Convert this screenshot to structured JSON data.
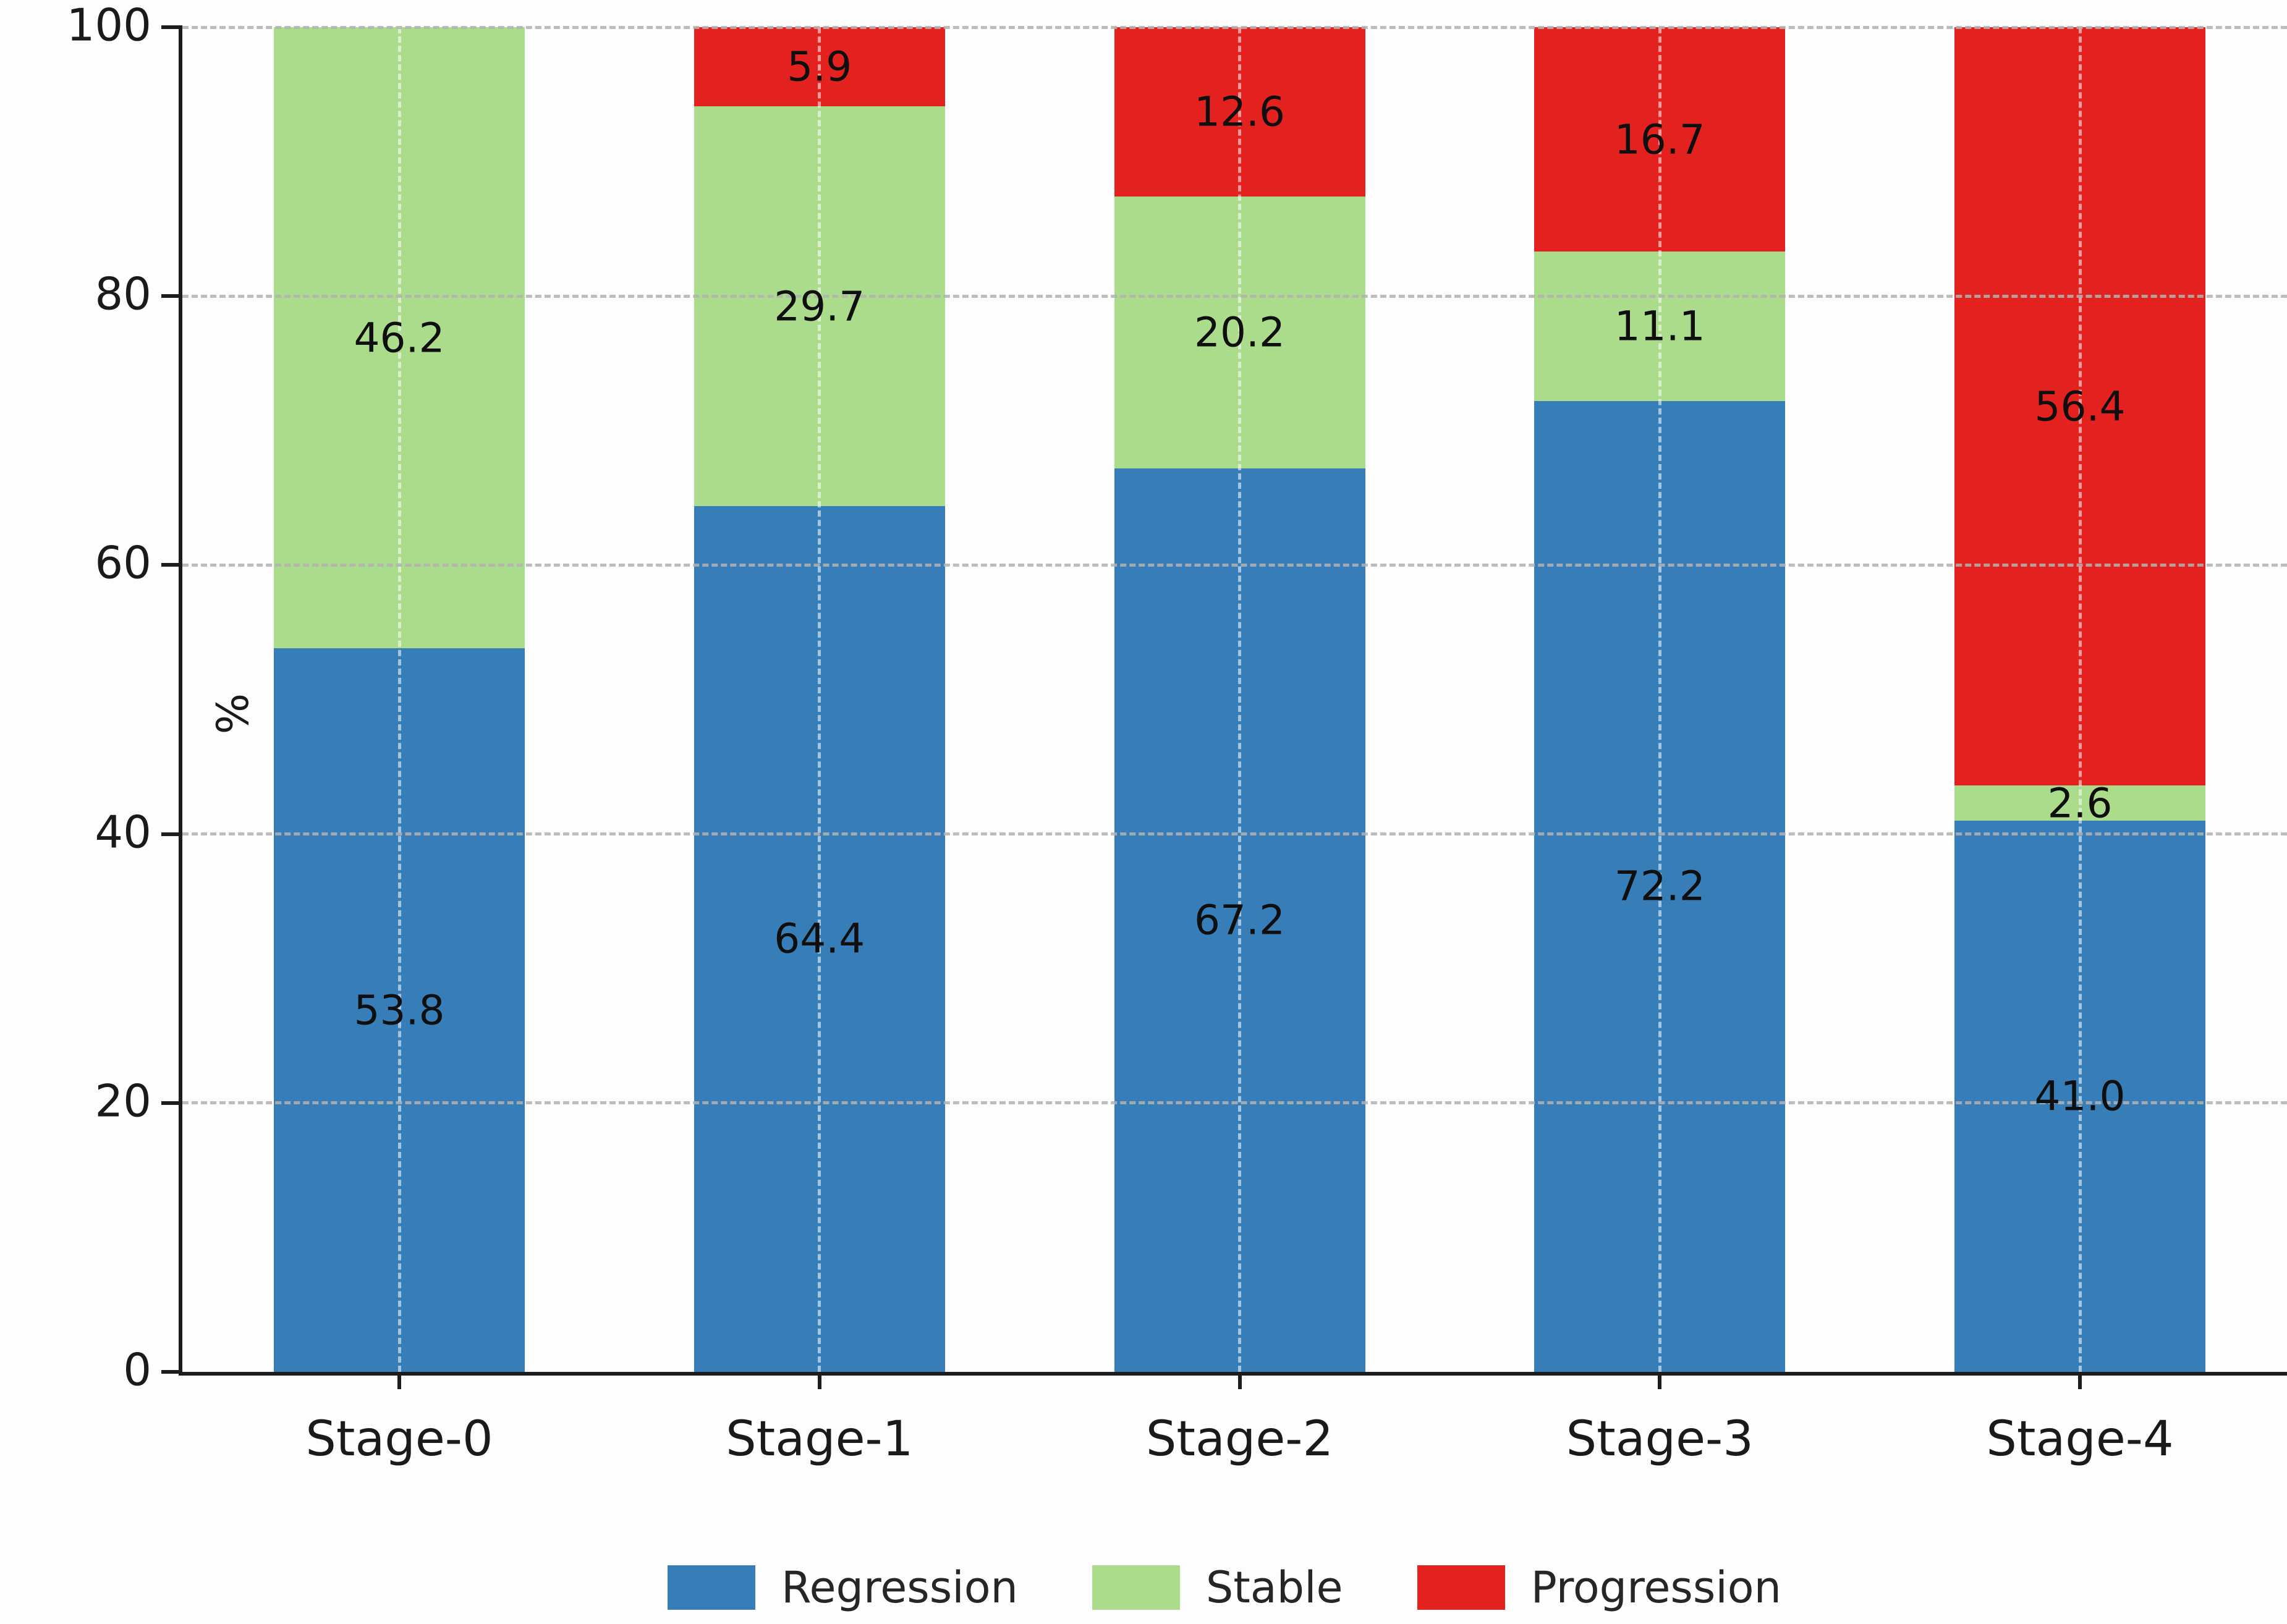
{
  "chart_data": {
    "type": "bar",
    "stacked": true,
    "orientation": "vertical",
    "title": "",
    "xlabel": "",
    "ylabel": "%",
    "categories": [
      "Stage-0",
      "Stage-1",
      "Stage-2",
      "Stage-3",
      "Stage-4"
    ],
    "series": [
      {
        "name": "Regression",
        "color": "#377eb8",
        "values": [
          53.8,
          64.4,
          67.2,
          72.2,
          41.0
        ]
      },
      {
        "name": "Stable",
        "color": "#abdc8b",
        "values": [
          46.2,
          29.7,
          20.2,
          11.1,
          2.6
        ]
      },
      {
        "name": "Progression",
        "color": "#e3211e",
        "values": [
          0.0,
          5.9,
          12.6,
          16.7,
          56.4
        ]
      }
    ],
    "bar_value_labels": {
      "Stage-0": {
        "Regression": "53.8",
        "Stable": "46.2"
      },
      "Stage-1": {
        "Regression": "64.4",
        "Stable": "29.7",
        "Progression": "5.9"
      },
      "Stage-2": {
        "Regression": "67.2",
        "Stable": "20.2",
        "Progression": "12.6"
      },
      "Stage-3": {
        "Regression": "72.2",
        "Stable": "11.1",
        "Progression": "16.7"
      },
      "Stage-4": {
        "Regression": "41.0",
        "Stable": "2.6",
        "Progression": "56.4"
      }
    },
    "ylim": [
      0,
      100
    ],
    "yticks": [
      0,
      20,
      40,
      60,
      80,
      100
    ],
    "ytick_labels": [
      "0",
      "20",
      "40",
      "60",
      "80",
      "100"
    ],
    "grid": true,
    "grid_style": "dashed",
    "grid_color": "#b2b2b2",
    "axis_color": "#1c1c1c",
    "label_color": "#0f0f0f",
    "legend_position": "bottom",
    "legend_entries": [
      "Regression",
      "Stable",
      "Progression"
    ]
  }
}
